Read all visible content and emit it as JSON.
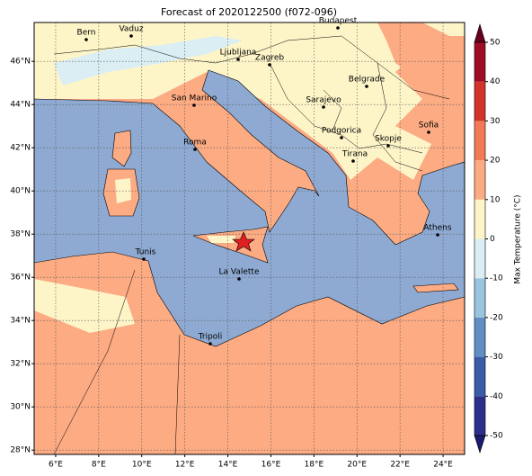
{
  "map": {
    "title": "Forecast of 2020122500 (f072-096)",
    "xlim": [
      5,
      25
    ],
    "ylim": [
      27.8,
      47.8
    ],
    "xticks": [
      {
        "value": 6,
        "label": "6°E"
      },
      {
        "value": 8,
        "label": "8°E"
      },
      {
        "value": 10,
        "label": "10°E"
      },
      {
        "value": 12,
        "label": "12°E"
      },
      {
        "value": 14,
        "label": "14°E"
      },
      {
        "value": 16,
        "label": "16°E"
      },
      {
        "value": 18,
        "label": "18°E"
      },
      {
        "value": 20,
        "label": "20°E"
      },
      {
        "value": 22,
        "label": "22°E"
      },
      {
        "value": 24,
        "label": "24°E"
      }
    ],
    "yticks": [
      {
        "value": 28,
        "label": "28°N"
      },
      {
        "value": 30,
        "label": "30°N"
      },
      {
        "value": 32,
        "label": "32°N"
      },
      {
        "value": 34,
        "label": "34°N"
      },
      {
        "value": 36,
        "label": "36°N"
      },
      {
        "value": 38,
        "label": "38°N"
      },
      {
        "value": 40,
        "label": "40°N"
      },
      {
        "value": 42,
        "label": "42°N"
      },
      {
        "value": 44,
        "label": "44°N"
      },
      {
        "value": 46,
        "label": "46°N"
      }
    ],
    "grid": true,
    "cities": [
      "Bern",
      "Vaduz",
      "Budapest",
      "Ljubljana",
      "Zagreb",
      "Belgrade",
      "San Marino",
      "Sarajevo",
      "Roma",
      "Podgorica",
      "Skopje",
      "Sofia",
      "Tirana",
      "Athens",
      "Tunis",
      "La Valette",
      "Tripoli"
    ]
  },
  "colorbar": {
    "label": "Max Temperature (°C)",
    "lim": [
      -50,
      50
    ],
    "ticks": [
      -50,
      -40,
      -30,
      -20,
      -10,
      0,
      10,
      20,
      30,
      40,
      50
    ],
    "colors": [
      "#2b2f8c",
      "#3a5ca8",
      "#5f8fc4",
      "#9bc4e0",
      "#dbeef4",
      "#fdf5c8",
      "#fcab83",
      "#f27b56",
      "#d2332a",
      "#9e0c26"
    ],
    "under_color": "#1a1a6e",
    "over_color": "#67001f"
  }
}
